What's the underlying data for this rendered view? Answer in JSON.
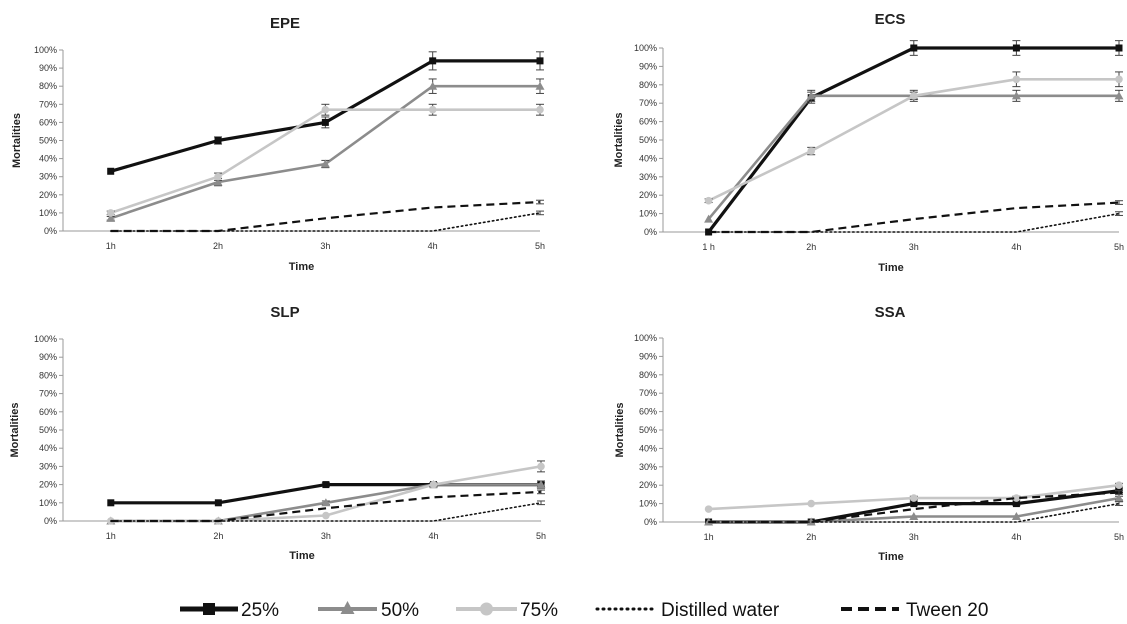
{
  "chart_data": [
    {
      "type": "line",
      "title": "EPE",
      "xlabel": "Time",
      "ylabel": "Mortalities",
      "categories": [
        "1h",
        "2h",
        "3h",
        "4h",
        "5h"
      ],
      "ylim": [
        0,
        100
      ],
      "yticks": [
        "0%",
        "10%",
        "20%",
        "30%",
        "40%",
        "50%",
        "60%",
        "70%",
        "80%",
        "90%",
        "100%"
      ],
      "series": [
        {
          "name": "25%",
          "values": [
            33,
            50,
            60,
            94,
            94
          ],
          "errors": [
            0,
            2,
            3,
            5,
            5
          ]
        },
        {
          "name": "50%",
          "values": [
            7,
            27,
            37,
            80,
            80
          ],
          "errors": [
            1,
            2,
            2,
            4,
            4
          ]
        },
        {
          "name": "75%",
          "values": [
            10,
            30,
            67,
            67,
            67
          ],
          "errors": [
            1,
            2,
            3,
            3,
            3
          ]
        },
        {
          "name": "Distilled water",
          "values": [
            0,
            0,
            0,
            0,
            10
          ],
          "errors": [
            0,
            0,
            0,
            0,
            1
          ]
        },
        {
          "name": "Tween 20",
          "values": [
            0,
            0,
            7,
            13,
            16
          ],
          "errors": [
            0,
            0,
            0,
            0,
            1
          ]
        }
      ]
    },
    {
      "type": "line",
      "title": "ECS",
      "xlabel": "Time",
      "ylabel": "Mortalities",
      "categories": [
        "1 h",
        "2h",
        "3h",
        "4h",
        "5h"
      ],
      "ylim": [
        0,
        100
      ],
      "yticks": [
        "0%",
        "10%",
        "20%",
        "30%",
        "40%",
        "50%",
        "60%",
        "70%",
        "80%",
        "90%",
        "100%"
      ],
      "series": [
        {
          "name": "25%",
          "values": [
            0,
            73,
            100,
            100,
            100
          ],
          "errors": [
            0,
            3,
            4,
            4,
            4
          ]
        },
        {
          "name": "50%",
          "values": [
            7,
            74,
            74,
            74,
            74
          ],
          "errors": [
            0,
            3,
            3,
            3,
            3
          ]
        },
        {
          "name": "75%",
          "values": [
            17,
            44,
            74,
            83,
            83
          ],
          "errors": [
            1,
            2,
            2,
            4,
            4
          ]
        },
        {
          "name": "Distilled water",
          "values": [
            0,
            0,
            0,
            0,
            10
          ],
          "errors": [
            0,
            0,
            0,
            0,
            1
          ]
        },
        {
          "name": "Tween 20",
          "values": [
            0,
            0,
            7,
            13,
            16
          ],
          "errors": [
            0,
            0,
            0,
            0,
            1
          ]
        }
      ]
    },
    {
      "type": "line",
      "title": "SLP",
      "xlabel": "Time",
      "ylabel": "Mortalities",
      "categories": [
        "1h",
        "2h",
        "3h",
        "4h",
        "5h"
      ],
      "ylim": [
        0,
        100
      ],
      "yticks": [
        "0%",
        "10%",
        "20%",
        "30%",
        "40%",
        "50%",
        "60%",
        "70%",
        "80%",
        "90%",
        "100%"
      ],
      "series": [
        {
          "name": "25%",
          "values": [
            10,
            10,
            20,
            20,
            20
          ],
          "errors": [
            0,
            0,
            1,
            1,
            1
          ]
        },
        {
          "name": "50%",
          "values": [
            0,
            0,
            10,
            20,
            20
          ],
          "errors": [
            0,
            0,
            1,
            1,
            2
          ]
        },
        {
          "name": "75%",
          "values": [
            0,
            0,
            3,
            20,
            30
          ],
          "errors": [
            0,
            0,
            0,
            1,
            3
          ]
        },
        {
          "name": "Distilled water",
          "values": [
            0,
            0,
            0,
            0,
            10
          ],
          "errors": [
            0,
            0,
            0,
            0,
            1
          ]
        },
        {
          "name": "Tween 20",
          "values": [
            0,
            0,
            7,
            13,
            16
          ],
          "errors": [
            0,
            0,
            0,
            0,
            1
          ]
        }
      ]
    },
    {
      "type": "line",
      "title": "SSA",
      "xlabel": "Time",
      "ylabel": "Mortalities",
      "categories": [
        "1h",
        "2h",
        "3h",
        "4h",
        "5h"
      ],
      "ylim": [
        0,
        100
      ],
      "yticks": [
        "0%",
        "10%",
        "20%",
        "30%",
        "40%",
        "50%",
        "60%",
        "70%",
        "80%",
        "90%",
        "100%"
      ],
      "series": [
        {
          "name": "25%",
          "values": [
            0,
            0,
            10,
            10,
            17
          ],
          "errors": [
            0,
            0,
            1,
            1,
            1
          ]
        },
        {
          "name": "50%",
          "values": [
            0,
            0,
            3,
            3,
            13
          ],
          "errors": [
            0,
            0,
            0,
            0,
            1
          ]
        },
        {
          "name": "75%",
          "values": [
            7,
            10,
            13,
            13,
            20
          ],
          "errors": [
            0,
            0,
            1,
            1,
            1
          ]
        },
        {
          "name": "Distilled water",
          "values": [
            0,
            0,
            0,
            0,
            10
          ],
          "errors": [
            0,
            0,
            0,
            0,
            1
          ]
        },
        {
          "name": "Tween 20",
          "values": [
            0,
            0,
            7,
            13,
            16
          ],
          "errors": [
            0,
            0,
            0,
            0,
            1
          ]
        }
      ]
    }
  ],
  "legend": {
    "items": [
      {
        "label": "25%",
        "color": "#111111",
        "dash": "solid",
        "marker": "square"
      },
      {
        "label": "50%",
        "color": "#8c8c8c",
        "dash": "solid",
        "marker": "triangle"
      },
      {
        "label": "75%",
        "color": "#c6c6c6",
        "dash": "solid",
        "marker": "circle"
      },
      {
        "label": "Distilled water",
        "color": "#111111",
        "dash": "dotted",
        "marker": "none"
      },
      {
        "label": "Tween 20",
        "color": "#111111",
        "dash": "dashed",
        "marker": "none"
      }
    ]
  }
}
